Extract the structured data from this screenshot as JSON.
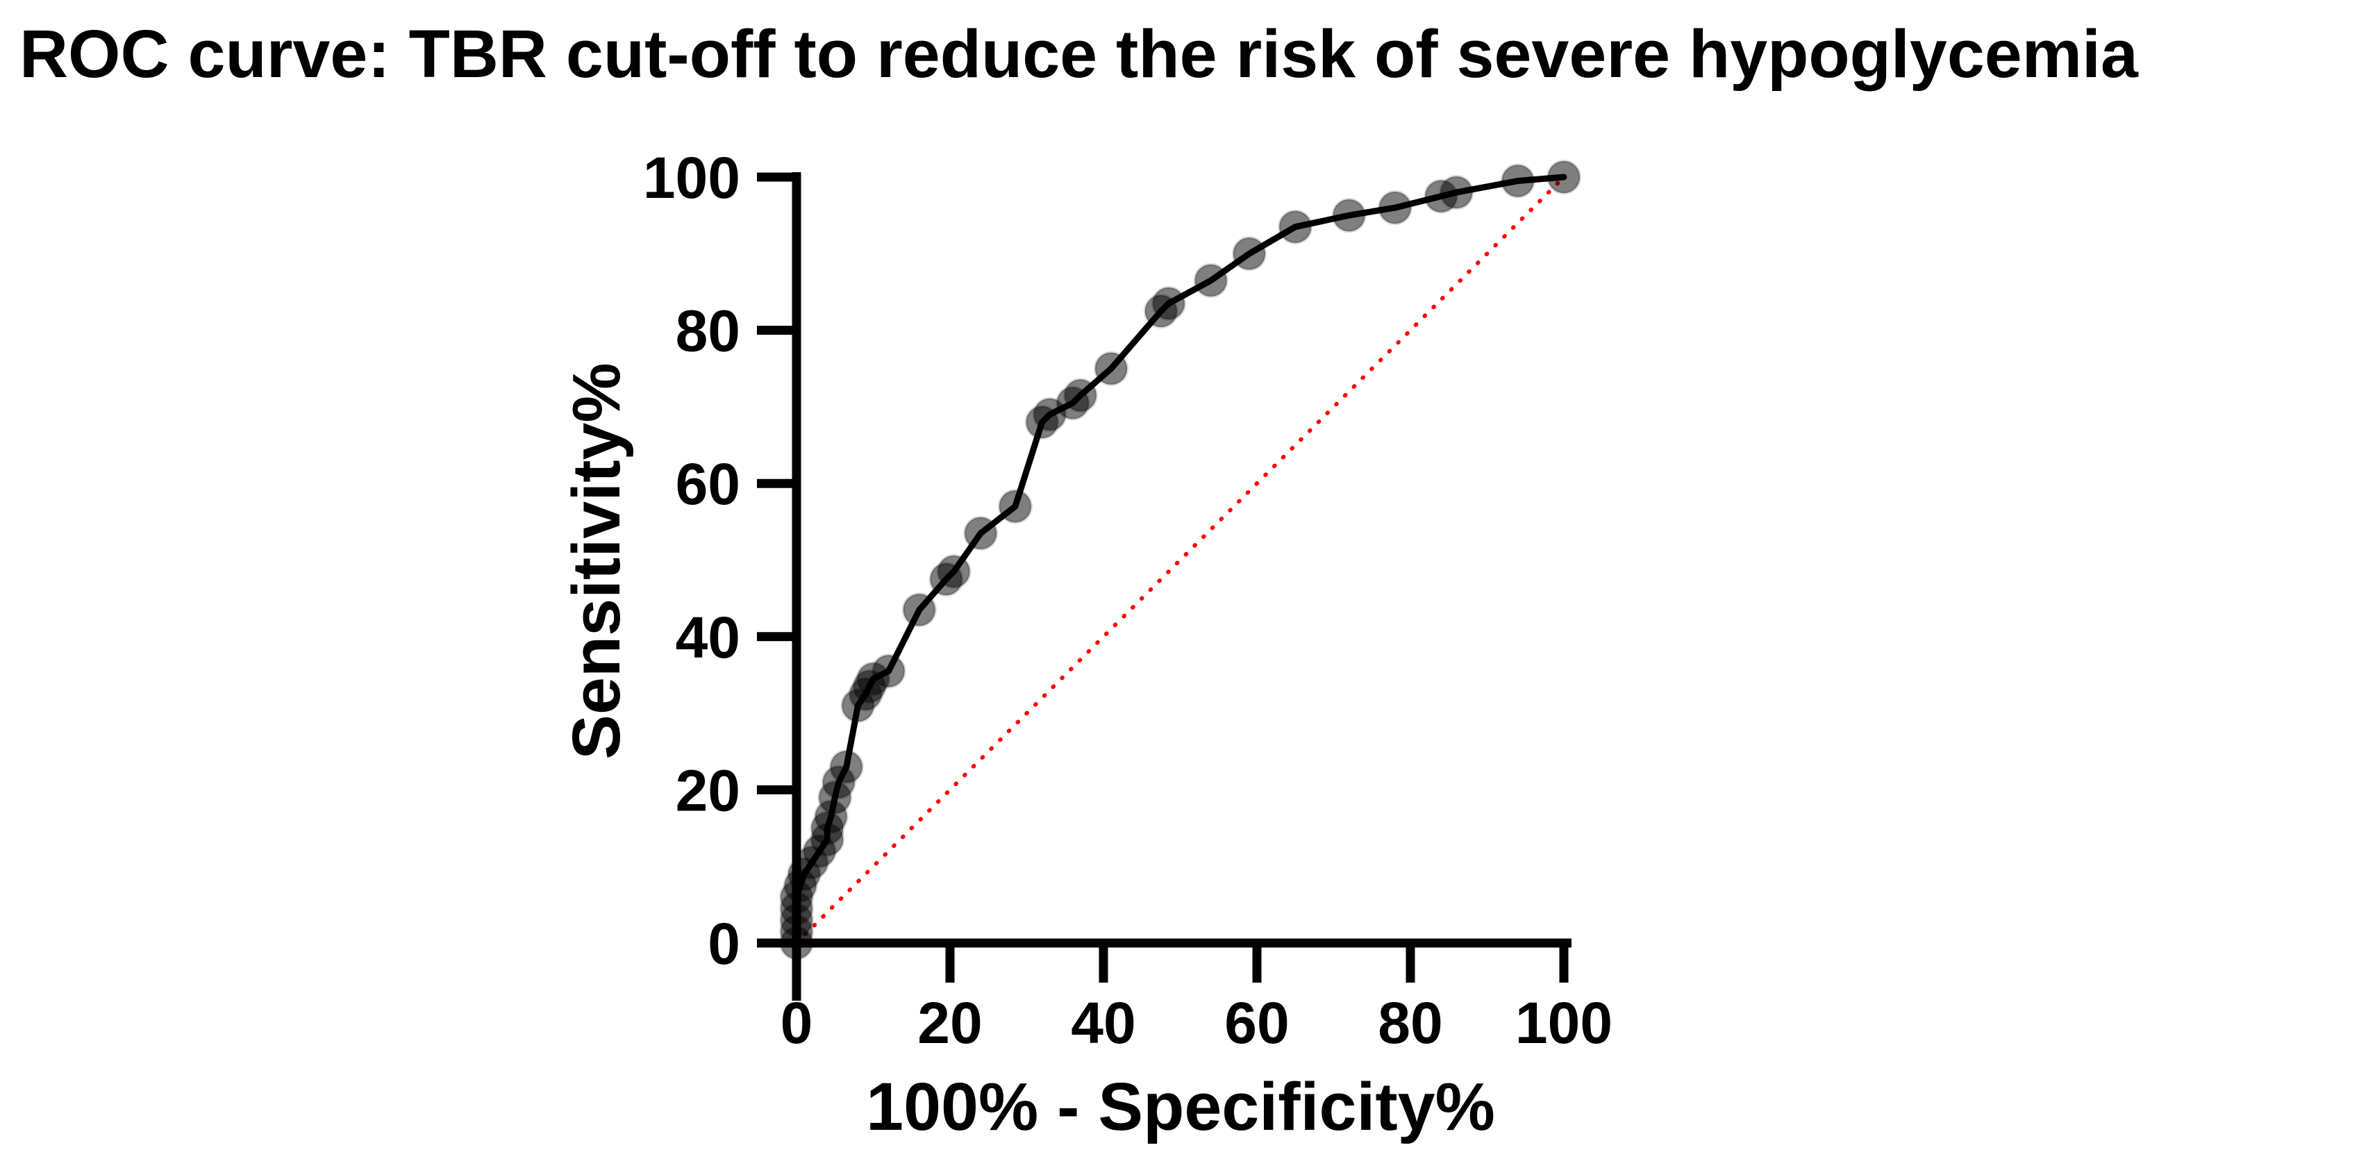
{
  "title": "ROC curve: TBR cut-off to reduce the risk of severe hypoglycemia",
  "colors": {
    "curve": "#000000",
    "marker": "#000000",
    "reference_line": "#ff0000",
    "text": "#000000",
    "background": "#ffffff"
  },
  "chart_data": {
    "type": "line",
    "subtype": "roc-curve-with-scatter-markers",
    "title": "ROC curve: TBR cut-off to reduce the risk of severe hypoglycemia",
    "xlabel": "100% - Specificity%",
    "ylabel": "Sensitivity%",
    "xlim": [
      0,
      100
    ],
    "ylim": [
      0,
      100
    ],
    "x_ticks": [
      0,
      20,
      40,
      60,
      80,
      100
    ],
    "y_ticks": [
      0,
      20,
      40,
      60,
      80,
      100
    ],
    "grid": false,
    "legend": false,
    "series": [
      {
        "name": "ROC curve (TBR cut-off)",
        "type": "line+scatter",
        "color": "#000000",
        "marker_opacity": 0.5,
        "points": [
          [
            0,
            0
          ],
          [
            0,
            1.5
          ],
          [
            0,
            3
          ],
          [
            0,
            4.5
          ],
          [
            0,
            6
          ],
          [
            0.5,
            7.5
          ],
          [
            1,
            9
          ],
          [
            2,
            10.5
          ],
          [
            3,
            12
          ],
          [
            4,
            13.5
          ],
          [
            4,
            15
          ],
          [
            4.5,
            16.5
          ],
          [
            5,
            19
          ],
          [
            5.5,
            21
          ],
          [
            6.5,
            23
          ],
          [
            8,
            31
          ],
          [
            9,
            32.5
          ],
          [
            9.5,
            33.5
          ],
          [
            10,
            34.5
          ],
          [
            12,
            35.5
          ],
          [
            16,
            43.5
          ],
          [
            19.5,
            47.5
          ],
          [
            20.5,
            48.5
          ],
          [
            24,
            53.5
          ],
          [
            28.5,
            57
          ],
          [
            32,
            68
          ],
          [
            33,
            69
          ],
          [
            36,
            70.5
          ],
          [
            37,
            71.5
          ],
          [
            41,
            75
          ],
          [
            47.5,
            82.5
          ],
          [
            48.5,
            83.5
          ],
          [
            54,
            86.5
          ],
          [
            59,
            90
          ],
          [
            65,
            93.5
          ],
          [
            72,
            95
          ],
          [
            78,
            96
          ],
          [
            84,
            97.5
          ],
          [
            86,
            98
          ],
          [
            94,
            99.5
          ],
          [
            100,
            100
          ]
        ]
      },
      {
        "name": "identity reference line",
        "type": "line",
        "style": "dotted",
        "color": "#ff0000",
        "points": [
          [
            0,
            0
          ],
          [
            100,
            100
          ]
        ]
      }
    ]
  }
}
